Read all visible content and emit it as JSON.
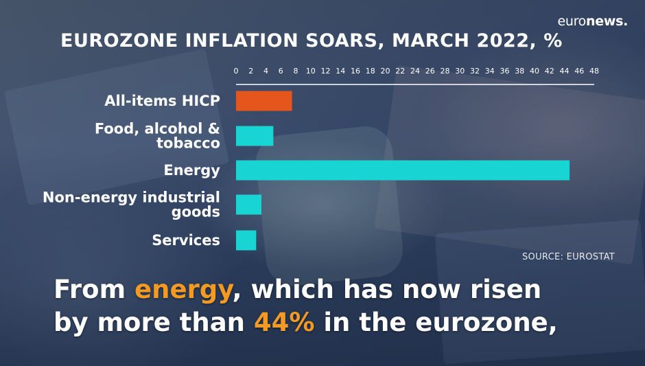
{
  "logo": {
    "part1": "euro",
    "part2": "news."
  },
  "source": "SOURCE: EUROSTAT",
  "subtitle": {
    "line1_pre": "From ",
    "line1_hl": "energy",
    "line1_post": ", which has now risen",
    "line2_pre": "by more than ",
    "line2_hl": "44%",
    "line2_post": " in the eurozone,"
  },
  "colors": {
    "highlight_bar": "#e4561b",
    "bar": "#18d4d2",
    "subtitle_highlight": "#f29a24",
    "text": "#ffffff"
  },
  "chart_data": {
    "type": "bar",
    "orientation": "horizontal",
    "title": "EUROZONE INFLATION SOARS, MARCH 2022, %",
    "categories": [
      [
        "All-items HICP"
      ],
      [
        "Food, alcohol &",
        "tobacco"
      ],
      [
        "Energy"
      ],
      [
        "Non-energy industrial",
        "goods"
      ],
      [
        "Services"
      ]
    ],
    "values": [
      7.5,
      5.0,
      44.7,
      3.4,
      2.7
    ],
    "highlight_index": 0,
    "xlim": [
      0,
      48
    ],
    "ticks": [
      0,
      2,
      4,
      6,
      8,
      10,
      12,
      14,
      16,
      18,
      20,
      22,
      24,
      26,
      28,
      30,
      32,
      34,
      36,
      38,
      40,
      42,
      44,
      46,
      48
    ],
    "axis_position": "top",
    "grid": false,
    "legend": "none"
  }
}
